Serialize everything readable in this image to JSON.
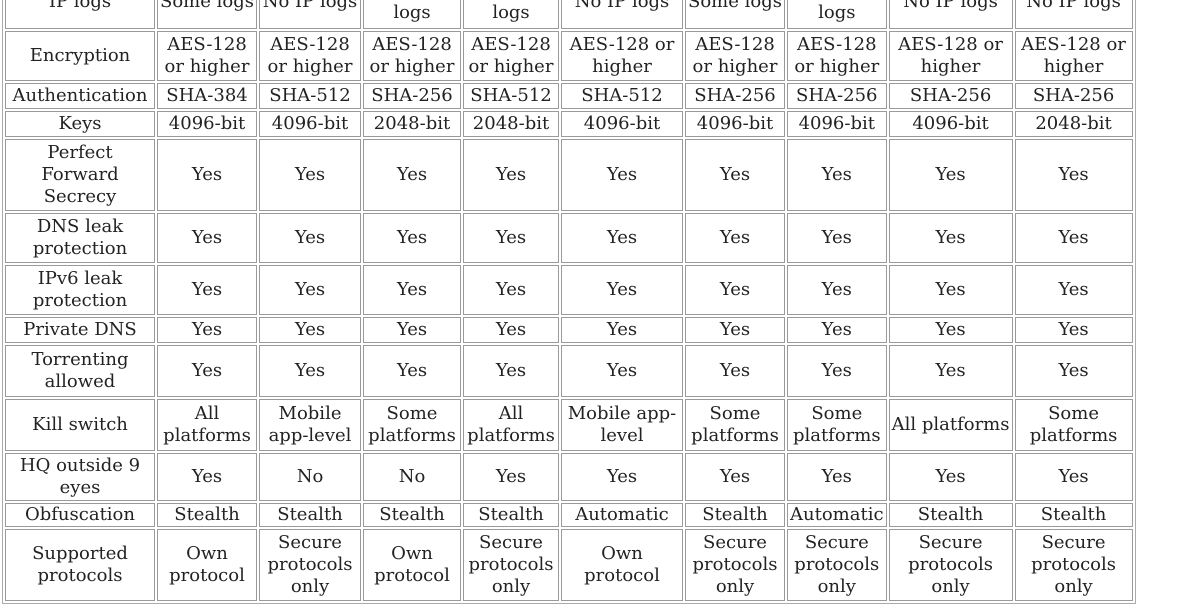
{
  "columns_count": 9,
  "rows": [
    {
      "label": "IP logs",
      "values": [
        "Some logs",
        "No IP logs",
        "Some logs",
        "Some logs",
        "No IP logs",
        "Some logs",
        "No IP logs",
        "No IP logs",
        "No IP logs"
      ]
    },
    {
      "label": "Encryption",
      "values": [
        "AES-128 or higher",
        "AES-128 or higher",
        "AES-128 or higher",
        "AES-128 or higher",
        "AES-128 or higher",
        "AES-128 or higher",
        "AES-128 or higher",
        "AES-128 or higher",
        "AES-128 or higher"
      ]
    },
    {
      "label": "Authentication",
      "values": [
        "SHA-384",
        "SHA-512",
        "SHA-256",
        "SHA-512",
        "SHA-512",
        "SHA-256",
        "SHA-256",
        "SHA-256",
        "SHA-256"
      ]
    },
    {
      "label": "Keys",
      "values": [
        "4096-bit",
        "4096-bit",
        "2048-bit",
        "2048-bit",
        "4096-bit",
        "4096-bit",
        "4096-bit",
        "4096-bit",
        "2048-bit"
      ]
    },
    {
      "label": "Perfect Forward Secrecy",
      "values": [
        "Yes",
        "Yes",
        "Yes",
        "Yes",
        "Yes",
        "Yes",
        "Yes",
        "Yes",
        "Yes"
      ]
    },
    {
      "label": "DNS leak protection",
      "values": [
        "Yes",
        "Yes",
        "Yes",
        "Yes",
        "Yes",
        "Yes",
        "Yes",
        "Yes",
        "Yes"
      ]
    },
    {
      "label": "IPv6 leak protection",
      "values": [
        "Yes",
        "Yes",
        "Yes",
        "Yes",
        "Yes",
        "Yes",
        "Yes",
        "Yes",
        "Yes"
      ]
    },
    {
      "label": "Private DNS",
      "values": [
        "Yes",
        "Yes",
        "Yes",
        "Yes",
        "Yes",
        "Yes",
        "Yes",
        "Yes",
        "Yes"
      ]
    },
    {
      "label": "Torrenting allowed",
      "values": [
        "Yes",
        "Yes",
        "Yes",
        "Yes",
        "Yes",
        "Yes",
        "Yes",
        "Yes",
        "Yes"
      ]
    },
    {
      "label": "Kill switch",
      "values": [
        "All platforms",
        "Mobile app-level",
        "Some platforms",
        "All platforms",
        "Mobile app-level",
        "Some platforms",
        "Some platforms",
        "All platforms",
        "Some platforms"
      ]
    },
    {
      "label": "HQ outside 9 eyes",
      "values": [
        "Yes",
        "No",
        "No",
        "Yes",
        "Yes",
        "Yes",
        "Yes",
        "Yes",
        "Yes"
      ]
    },
    {
      "label": "Obfuscation",
      "values": [
        "Stealth",
        "Stealth",
        "Stealth",
        "Stealth",
        "Automatic",
        "Stealth",
        "Automatic",
        "Stealth",
        "Stealth"
      ]
    },
    {
      "label": "Supported protocols",
      "values": [
        "Own protocol",
        "Secure protocols only",
        "Own protocol",
        "Secure protocols only",
        "Own protocol",
        "Secure protocols only",
        "Secure protocols only",
        "Secure protocols only",
        "Secure protocols only"
      ]
    }
  ]
}
